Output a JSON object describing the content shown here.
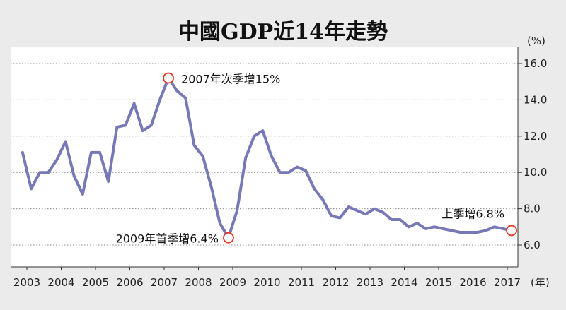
{
  "chart_data": {
    "type": "line",
    "title": "中國GDP近14年走勢",
    "xlabel": "(年)",
    "ylabel": "(%)",
    "ylim": [
      6.0,
      16.0
    ],
    "yticks": [
      "6.0",
      "8.0",
      "10.0",
      "12.0",
      "14.0",
      "16.0"
    ],
    "xticks": [
      "2003",
      "2004",
      "2005",
      "2006",
      "2007",
      "2008",
      "2009",
      "2010",
      "2011",
      "2012",
      "2013",
      "2014",
      "2015",
      "2016",
      "2017"
    ],
    "grid": true,
    "line_color": "#7779b7",
    "marker_color": "#e8321e",
    "series": [
      {
        "x": [
          2002.875,
          2003.125,
          2003.375,
          2003.625,
          2003.875,
          2004.125,
          2004.375,
          2004.625,
          2004.875,
          2005.125,
          2005.375,
          2005.625,
          2005.875,
          2006.125,
          2006.375,
          2006.625,
          2006.875,
          2007.125,
          2007.375,
          2007.625,
          2007.875,
          2008.125,
          2008.375,
          2008.625,
          2008.875,
          2009.125,
          2009.375,
          2009.625,
          2009.875,
          2010.125,
          2010.375,
          2010.625,
          2010.875,
          2011.125,
          2011.375,
          2011.625,
          2011.875,
          2012.125,
          2012.375,
          2012.625,
          2012.875,
          2013.125,
          2013.375,
          2013.625,
          2013.875,
          2014.125,
          2014.375,
          2014.625,
          2014.875,
          2015.125,
          2015.375,
          2015.625,
          2015.875,
          2016.125,
          2016.375,
          2016.625,
          2016.875,
          2017.125
        ],
        "values": [
          11.1,
          9.1,
          10.0,
          10.0,
          10.7,
          11.7,
          9.8,
          8.8,
          11.1,
          11.1,
          9.5,
          12.5,
          12.6,
          13.8,
          12.3,
          12.6,
          14.0,
          15.2,
          14.5,
          14.1,
          11.5,
          10.9,
          9.2,
          7.2,
          6.4,
          7.9,
          10.8,
          12.0,
          12.3,
          10.9,
          10.0,
          10.0,
          10.3,
          10.1,
          9.1,
          8.5,
          7.6,
          7.5,
          8.1,
          7.9,
          7.7,
          8.0,
          7.8,
          7.4,
          7.4,
          7.0,
          7.2,
          6.9,
          7.0,
          6.9,
          6.8,
          6.7,
          6.7,
          6.7,
          6.8,
          7.0,
          6.9,
          6.8
        ]
      }
    ],
    "annotations": [
      {
        "label": "2007年次季增15%",
        "x": 2007.125,
        "y": 15.2
      },
      {
        "label": "2009年首季增6.4%",
        "x": 2008.875,
        "y": 6.4
      },
      {
        "label": "上季增6.8%",
        "x": 2017.125,
        "y": 6.8
      }
    ]
  }
}
